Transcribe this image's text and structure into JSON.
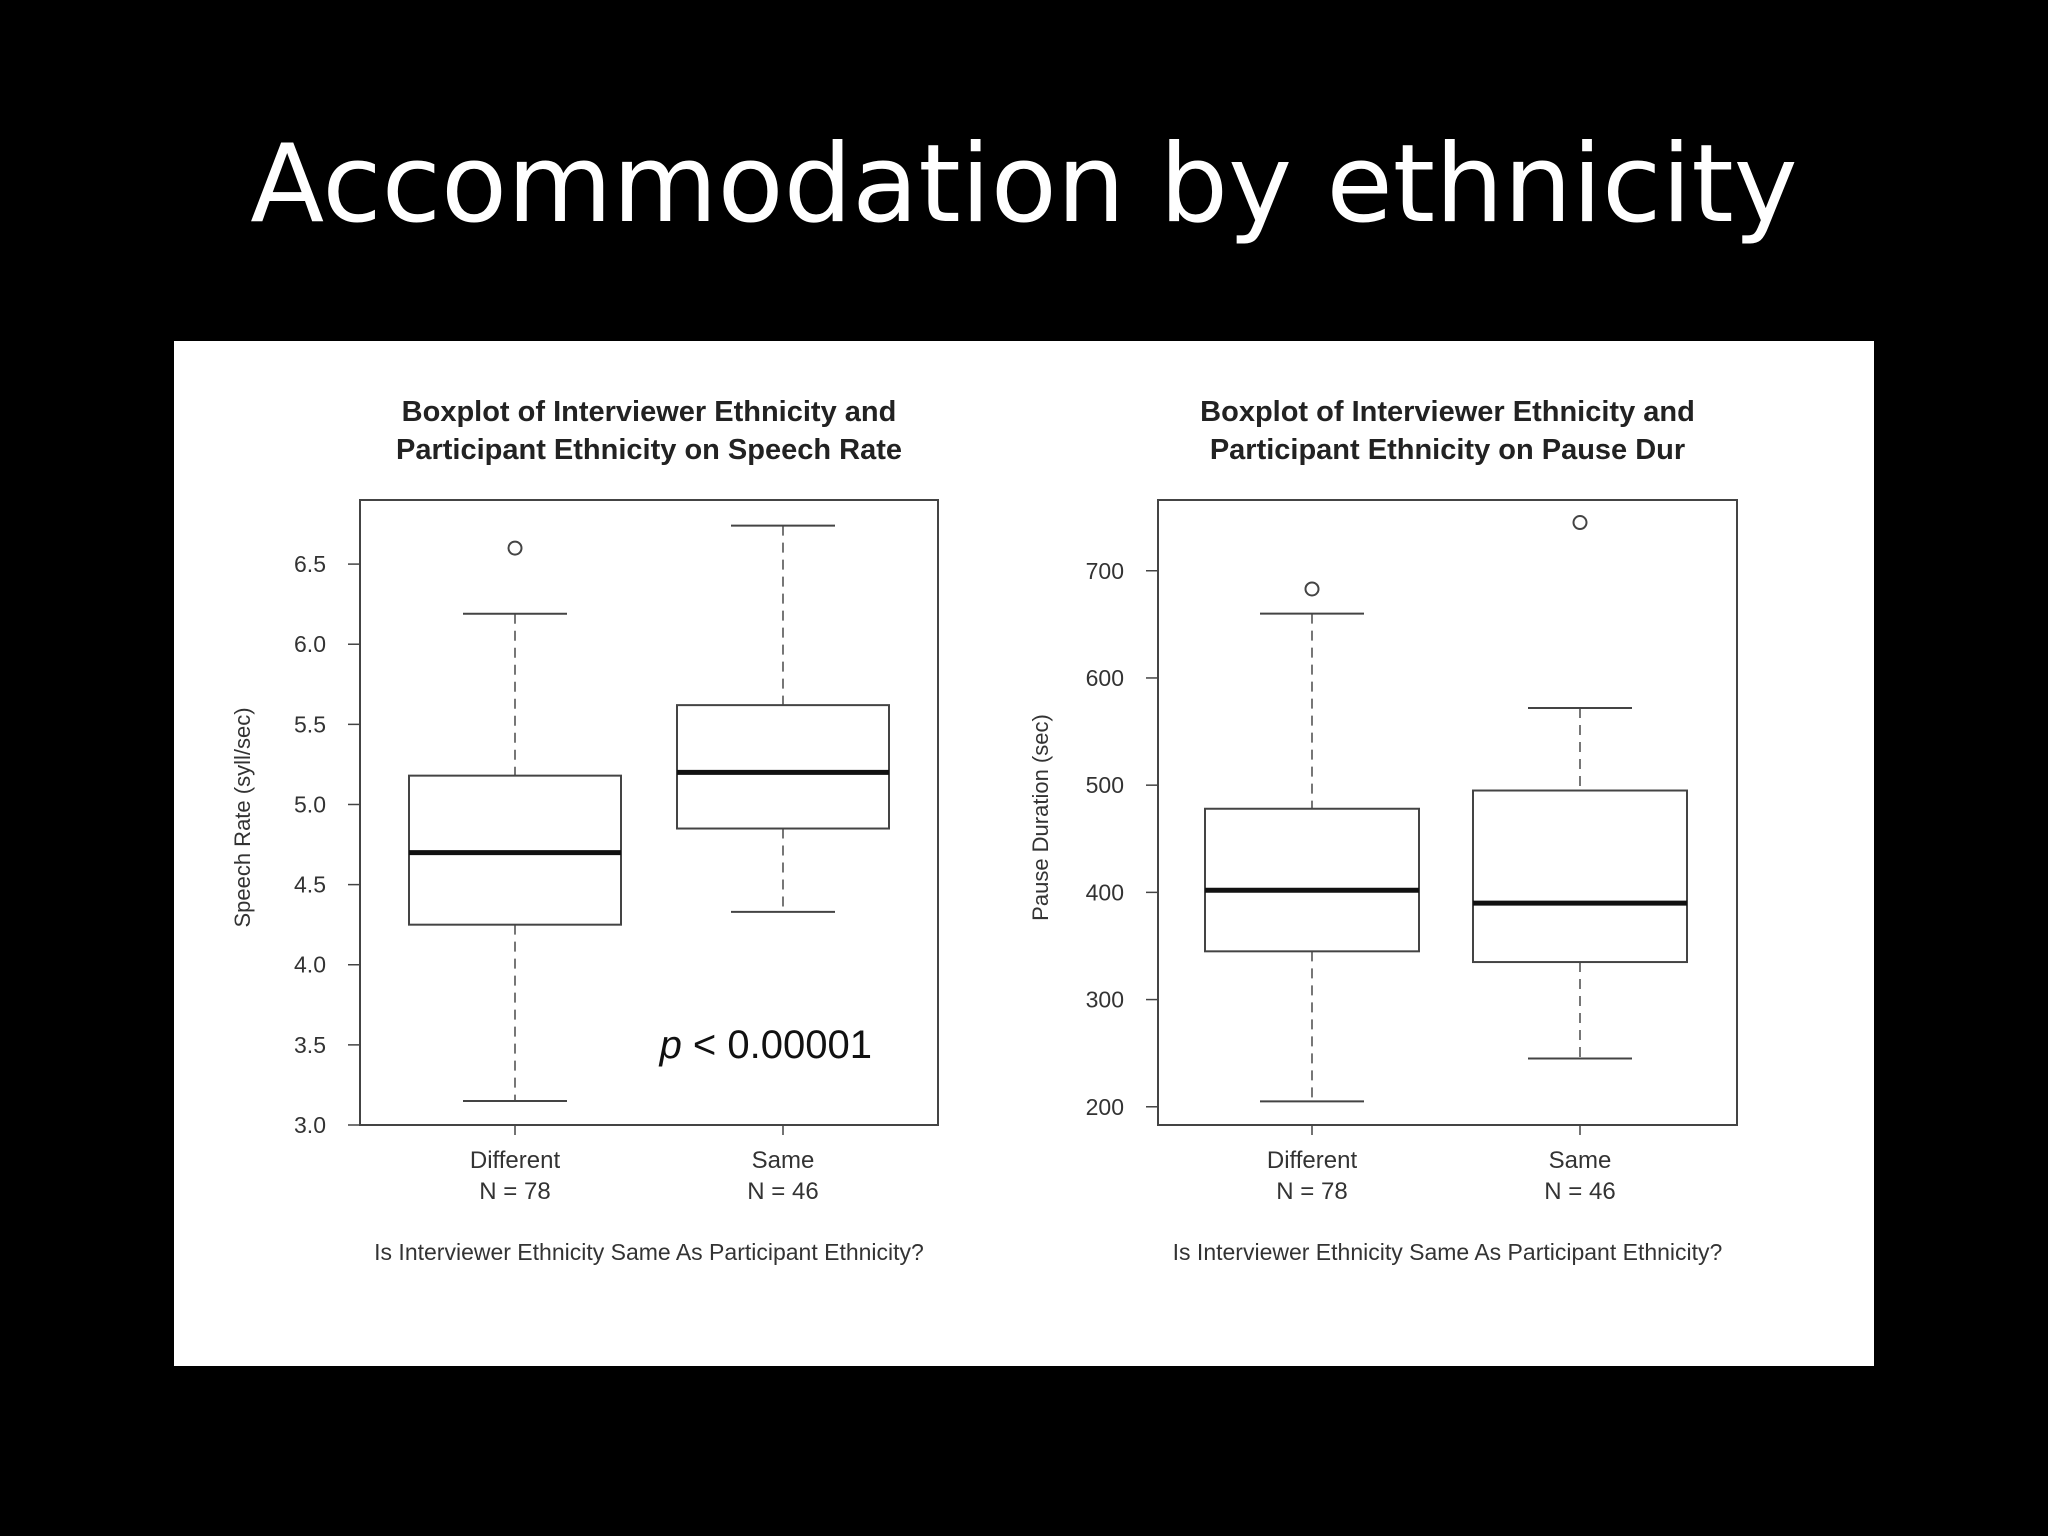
{
  "slide": {
    "title": "Accommodation by ethnicity"
  },
  "chart_data": [
    {
      "type": "boxplot",
      "title_lines": [
        "Boxplot of Interviewer Ethnicity and",
        "Participant Ethnicity on Speech Rate"
      ],
      "ylabel": "Speech Rate (syll/sec)",
      "xlabel": "Is Interviewer Ethnicity Same As Participant Ethnicity?",
      "ylim": [
        3.0,
        6.9
      ],
      "yticks": [
        "3.0",
        "3.5",
        "4.0",
        "4.5",
        "5.0",
        "5.5",
        "6.0",
        "6.5"
      ],
      "categories": [
        {
          "name": "Different",
          "n_label": "N = 78"
        },
        {
          "name": "Same",
          "n_label": "N = 46"
        }
      ],
      "boxes": [
        {
          "min": 3.15,
          "q1": 4.25,
          "median": 4.7,
          "q3": 5.18,
          "max": 6.19,
          "outliers": [
            6.6
          ]
        },
        {
          "min": 4.33,
          "q1": 4.85,
          "median": 5.2,
          "q3": 5.62,
          "max": 6.74,
          "outliers": []
        }
      ],
      "annotation": {
        "italic": "p",
        "text": " < 0.00001"
      },
      "grid": false
    },
    {
      "type": "boxplot",
      "title_lines": [
        "Boxplot of Interviewer Ethnicity and",
        "Participant Ethnicity on Pause Dur"
      ],
      "ylabel": "Pause Duration (sec)",
      "xlabel": "Is Interviewer Ethnicity Same As Participant Ethnicity?",
      "ylim": [
        183,
        766
      ],
      "yticks": [
        "200",
        "300",
        "400",
        "500",
        "600",
        "700"
      ],
      "categories": [
        {
          "name": "Different",
          "n_label": "N = 78"
        },
        {
          "name": "Same",
          "n_label": "N = 46"
        }
      ],
      "boxes": [
        {
          "min": 205,
          "q1": 345,
          "median": 402,
          "q3": 478,
          "max": 660,
          "outliers": [
            683
          ]
        },
        {
          "min": 245,
          "q1": 335,
          "median": 390,
          "q3": 495,
          "max": 572,
          "outliers": [
            745
          ]
        }
      ],
      "grid": false
    }
  ]
}
